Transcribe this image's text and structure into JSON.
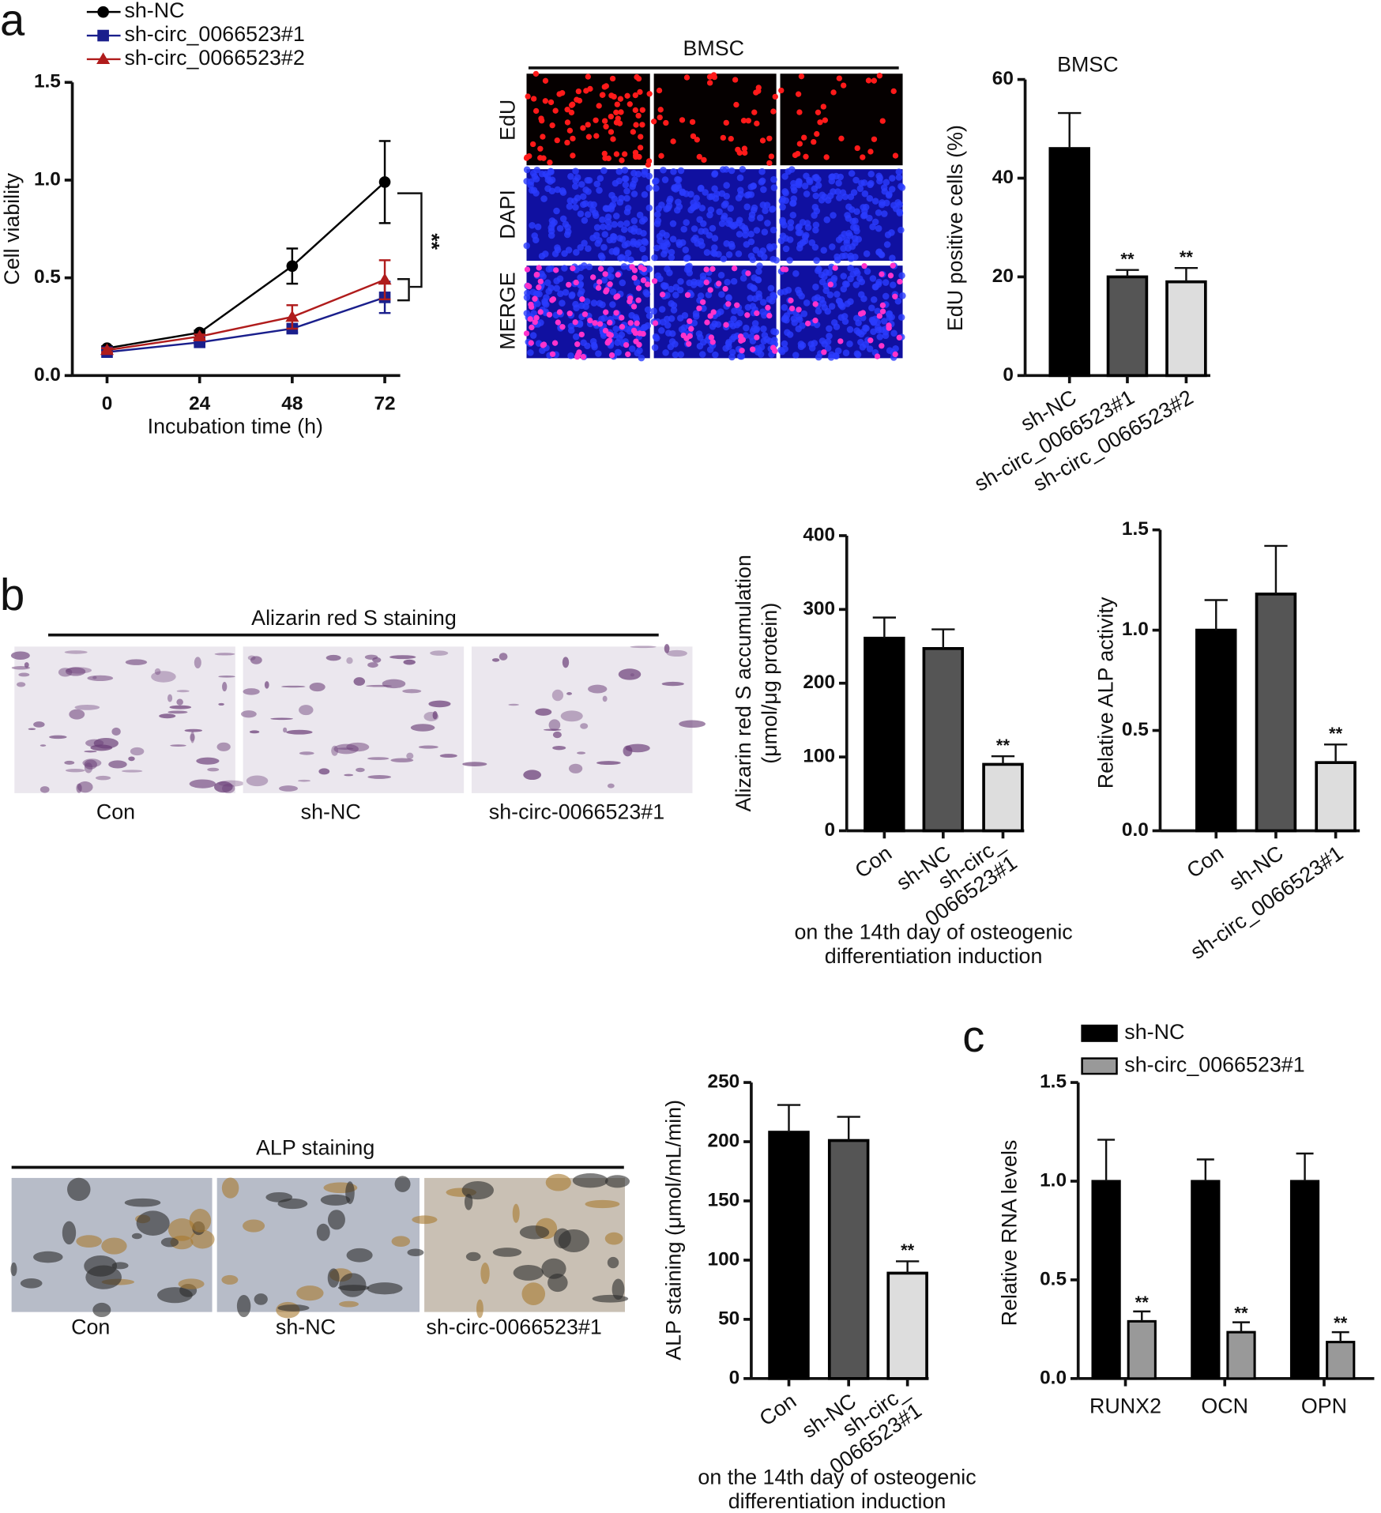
{
  "panel_labels": [
    "a",
    "b",
    "c"
  ],
  "edu_panel": {
    "title": "BMSC",
    "rows": [
      "EdU",
      "DAPI",
      "MERGE"
    ]
  },
  "alizarin_panel": {
    "title": "Alizarin red S staining",
    "captions": [
      "Con",
      "sh-NC",
      "sh-circ-0066523#1"
    ]
  },
  "alp_panel": {
    "title": "ALP staining",
    "captions": [
      "Con",
      "sh-NC",
      "sh-circ-0066523#1"
    ]
  },
  "chart_data": [
    {
      "type": "line",
      "xlabel": "Incubation time (h)",
      "ylabel": "Cell viability",
      "x": [
        0,
        24,
        48,
        72
      ],
      "xlim": [
        -9,
        76
      ],
      "xticks": [
        0,
        24,
        48,
        72
      ],
      "ylim": [
        0,
        1.5
      ],
      "yticks": [
        {
          "value": 0,
          "label": "0.0"
        },
        {
          "value": 0.5,
          "label": "0.5"
        },
        {
          "value": 1,
          "label": "1.0"
        },
        {
          "value": 1.5,
          "label": "1.5"
        }
      ],
      "annotation": "**",
      "series": [
        {
          "name": "sh-NC",
          "color": "#000000",
          "marker": "circle",
          "values": [
            0.14,
            0.22,
            0.56,
            0.99
          ],
          "errors": [
            0.01,
            0.01,
            0.09,
            0.21
          ]
        },
        {
          "name": "sh-circ_0066523#1",
          "color": "#1a1f8c",
          "marker": "square",
          "values": [
            0.12,
            0.17,
            0.24,
            0.4
          ],
          "errors": [
            0.01,
            0.01,
            0.02,
            0.08
          ]
        },
        {
          "name": "sh-circ_0066523#2",
          "color": "#b01c1c",
          "marker": "triangle",
          "values": [
            0.13,
            0.2,
            0.3,
            0.49
          ],
          "errors": [
            0.01,
            0.01,
            0.06,
            0.1
          ]
        }
      ]
    },
    {
      "type": "bar",
      "title": "BMSC",
      "ylabel": "EdU positive cells (%)",
      "categories": [
        "sh-NC",
        "sh-circ_0066523#1",
        "sh-circ_0066523#2"
      ],
      "values": [
        46,
        20,
        19
      ],
      "errors": [
        7.2,
        1.4,
        2.8
      ],
      "significance": [
        null,
        "**",
        "**"
      ],
      "colors": [
        "#000000",
        "#555555",
        "#dddddd"
      ],
      "ylim": [
        0,
        60
      ],
      "yticks": [
        0,
        20,
        40,
        60
      ]
    },
    {
      "type": "bar",
      "ylabel": [
        "Alizarin red S accumulation",
        "(μmol/μg protein)"
      ],
      "xlabel": [
        "on the 14th day of osteogenic",
        "differentiation induction"
      ],
      "categories": [
        "Con",
        "sh-NC",
        [
          "sh-circ_",
          "0066523#1"
        ]
      ],
      "values": [
        261,
        247,
        90
      ],
      "errors": [
        28,
        26,
        11
      ],
      "significance": [
        null,
        null,
        "**"
      ],
      "colors": [
        "#000000",
        "#555555",
        "#dddddd"
      ],
      "ylim": [
        0,
        400
      ],
      "yticks": [
        0,
        100,
        200,
        300,
        400
      ]
    },
    {
      "type": "bar",
      "ylabel": "Relative ALP activity",
      "categories": [
        "Con",
        "sh-NC",
        "sh-circ_0066523#1"
      ],
      "values": [
        1.0,
        1.18,
        0.34
      ],
      "errors": [
        0.15,
        0.24,
        0.09
      ],
      "significance": [
        null,
        null,
        "**"
      ],
      "colors": [
        "#000000",
        "#555555",
        "#dddddd"
      ],
      "ylim": [
        0,
        1.5
      ],
      "yticks": [
        {
          "value": 0,
          "label": "0.0"
        },
        {
          "value": 0.5,
          "label": "0.5"
        },
        {
          "value": 1,
          "label": "1.0"
        },
        {
          "value": 1.5,
          "label": "1.5"
        }
      ]
    },
    {
      "type": "bar",
      "ylabel": "ALP staining (μmol/mL/min)",
      "xlabel": [
        "on the 14th day of osteogenic",
        "differentiation induction"
      ],
      "categories": [
        "Con",
        "sh-NC",
        [
          "sh-circ_",
          "0066523#1"
        ]
      ],
      "values": [
        208,
        201,
        89
      ],
      "errors": [
        23,
        20,
        10
      ],
      "significance": [
        null,
        null,
        "**"
      ],
      "colors": [
        "#000000",
        "#555555",
        "#dddddd"
      ],
      "ylim": [
        0,
        250
      ],
      "yticks": [
        0,
        50,
        100,
        150,
        200,
        250
      ]
    },
    {
      "type": "grouped_bar",
      "ylabel": "Relative RNA levels",
      "categories": [
        "RUNX2",
        "OCN",
        "OPN"
      ],
      "ylim": [
        0,
        1.5
      ],
      "yticks": [
        {
          "value": 0,
          "label": "0.0"
        },
        {
          "value": 0.5,
          "label": "0.5"
        },
        {
          "value": 1,
          "label": "1.0"
        },
        {
          "value": 1.5,
          "label": "1.5"
        }
      ],
      "series": [
        {
          "name": "sh-NC",
          "color": "#000000",
          "values": [
            1.0,
            1.0,
            1.0
          ],
          "errors": [
            0.21,
            0.11,
            0.14
          ],
          "significance": [
            null,
            null,
            null
          ]
        },
        {
          "name": "sh-circ_0066523#1",
          "color": "#999999",
          "values": [
            0.29,
            0.235,
            0.185
          ],
          "errors": [
            0.05,
            0.05,
            0.05
          ],
          "significance": [
            "**",
            "**",
            "**"
          ]
        }
      ]
    }
  ]
}
